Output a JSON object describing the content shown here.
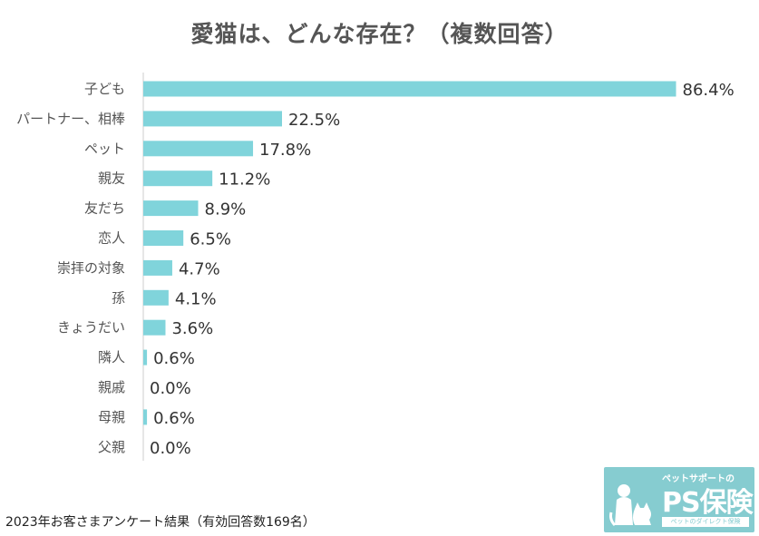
{
  "chart_data": {
    "type": "bar",
    "orientation": "horizontal",
    "title": "愛猫は、どんな存在？（複数回答）",
    "categories": [
      "子ども",
      "パートナー、相棒",
      "ペット",
      "親友",
      "友だち",
      "恋人",
      "崇拝の対象",
      "孫",
      "きょうだい",
      "隣人",
      "親戚",
      "母親",
      "父親"
    ],
    "values": [
      86.4,
      22.5,
      17.8,
      11.2,
      8.9,
      6.5,
      4.7,
      4.1,
      3.6,
      0.6,
      0.0,
      0.6,
      0.0
    ],
    "value_labels": [
      "86.4%",
      "22.5%",
      "17.8%",
      "11.2%",
      "8.9%",
      "6.5%",
      "4.7%",
      "4.1%",
      "3.6%",
      "0.6%",
      "0.0%",
      "0.6%",
      "0.0%"
    ],
    "unit": "%",
    "xlim": [
      0,
      100
    ],
    "bar_color": "#80d4db",
    "xlabel": "",
    "ylabel": ""
  },
  "footnote": "2023年お客さまアンケート結果（有効回答数169名）",
  "logo": {
    "tagline": "ペットサポートの",
    "brand": "PS保険",
    "subline": "ペットのダイレクト保険",
    "icon": "dog-and-cat-icon",
    "color": "#86ccd0"
  }
}
